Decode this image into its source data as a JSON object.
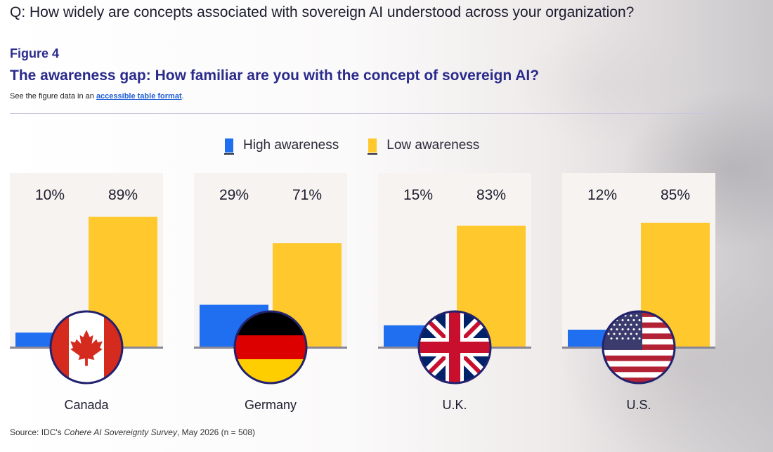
{
  "question": "Q: How widely are concepts associated with sovereign AI understood across your organization?",
  "figure_label": "Figure 4",
  "figure_title": "The awareness gap: How familiar are you with the concept of sovereign AI?",
  "note": {
    "prefix": "See the figure data in an ",
    "link_text": "accessible table format",
    "suffix": "."
  },
  "source": {
    "prefix": "Source: IDC's ",
    "survey": "Cohere AI Sovereignty Survey",
    "suffix": ", May 2026 (n = 508)"
  },
  "colors": {
    "high": "#1f6ff0",
    "low": "#ffc82c",
    "panel": "#f6f3f0",
    "baseline": "#8a8796"
  },
  "chart_data": {
    "type": "bar",
    "title": "The awareness gap: How familiar are you with the concept of sovereign AI?",
    "categories": [
      "Canada",
      "Germany",
      "U.K.",
      "U.S."
    ],
    "series": [
      {
        "name": "High awareness",
        "values": [
          10,
          29,
          15,
          12
        ]
      },
      {
        "name": "Low awareness",
        "values": [
          89,
          71,
          83,
          85
        ]
      }
    ],
    "data_labels": [
      [
        "10%",
        "89%"
      ],
      [
        "29%",
        "71%"
      ],
      [
        "15%",
        "83%"
      ],
      [
        "12%",
        "85%"
      ]
    ],
    "unit": "%",
    "ylim": [
      0,
      100
    ],
    "legend_position": "top-center",
    "grid": false,
    "flag_icons": [
      "canada-flag-icon",
      "germany-flag-icon",
      "uk-flag-icon",
      "us-flag-icon"
    ]
  }
}
